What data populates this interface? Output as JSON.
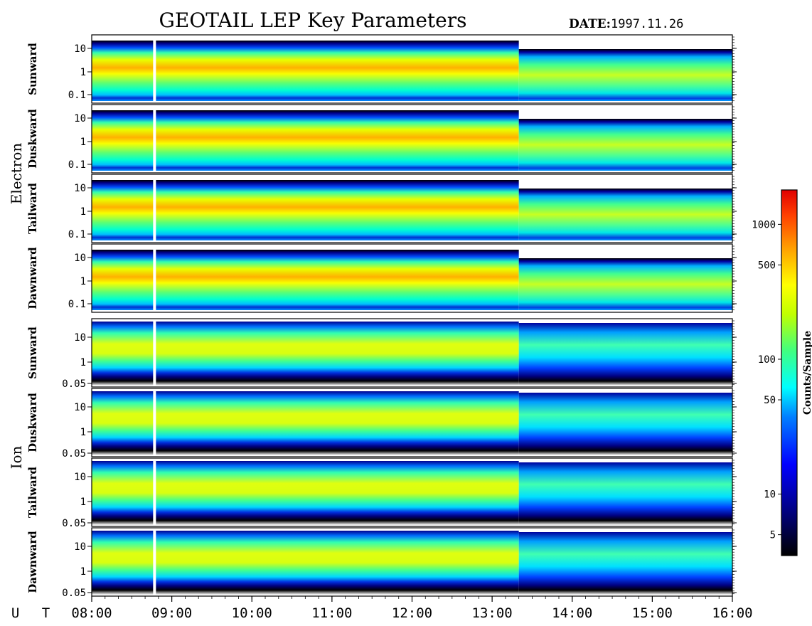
{
  "chart_data": {
    "type": "heatmap",
    "title": "GEOTAIL LEP Key Parameters",
    "date_label": "DATE:",
    "date_value": "1997.11.26",
    "ut_label": "U T",
    "x_range": [
      "08:00",
      "16:00"
    ],
    "x_ticks": [
      "08:00",
      "09:00",
      "10:00",
      "11:00",
      "12:00",
      "13:00",
      "14:00",
      "15:00",
      "16:00"
    ],
    "data_gap": {
      "start": "08:46",
      "end": "08:48"
    },
    "groups": [
      {
        "name": "Electron",
        "y_scale": "log",
        "y_ticks": [
          "10",
          "1",
          "0.1"
        ],
        "panels": [
          {
            "name": "Sunward"
          },
          {
            "name": "Duskward"
          },
          {
            "name": "Tailward"
          },
          {
            "name": "Dawnward"
          }
        ]
      },
      {
        "name": "Ion",
        "y_scale": "log",
        "y_ticks": [
          "10",
          "1",
          "0.05"
        ],
        "panels": [
          {
            "name": "Sunward"
          },
          {
            "name": "Duskward"
          },
          {
            "name": "Tailward"
          },
          {
            "name": "Dawnward"
          }
        ]
      }
    ],
    "colorbar": {
      "label": "Counts/Sample",
      "scale": "log",
      "ticks": [
        "1000",
        "500",
        "100",
        "50",
        "10",
        "5"
      ],
      "colormap": [
        "#000000",
        "#00007f",
        "#0000ff",
        "#0080ff",
        "#00ffff",
        "#40ff80",
        "#c0ff00",
        "#ffff00",
        "#ffa000",
        "#ff4000",
        "#e00000"
      ]
    }
  }
}
